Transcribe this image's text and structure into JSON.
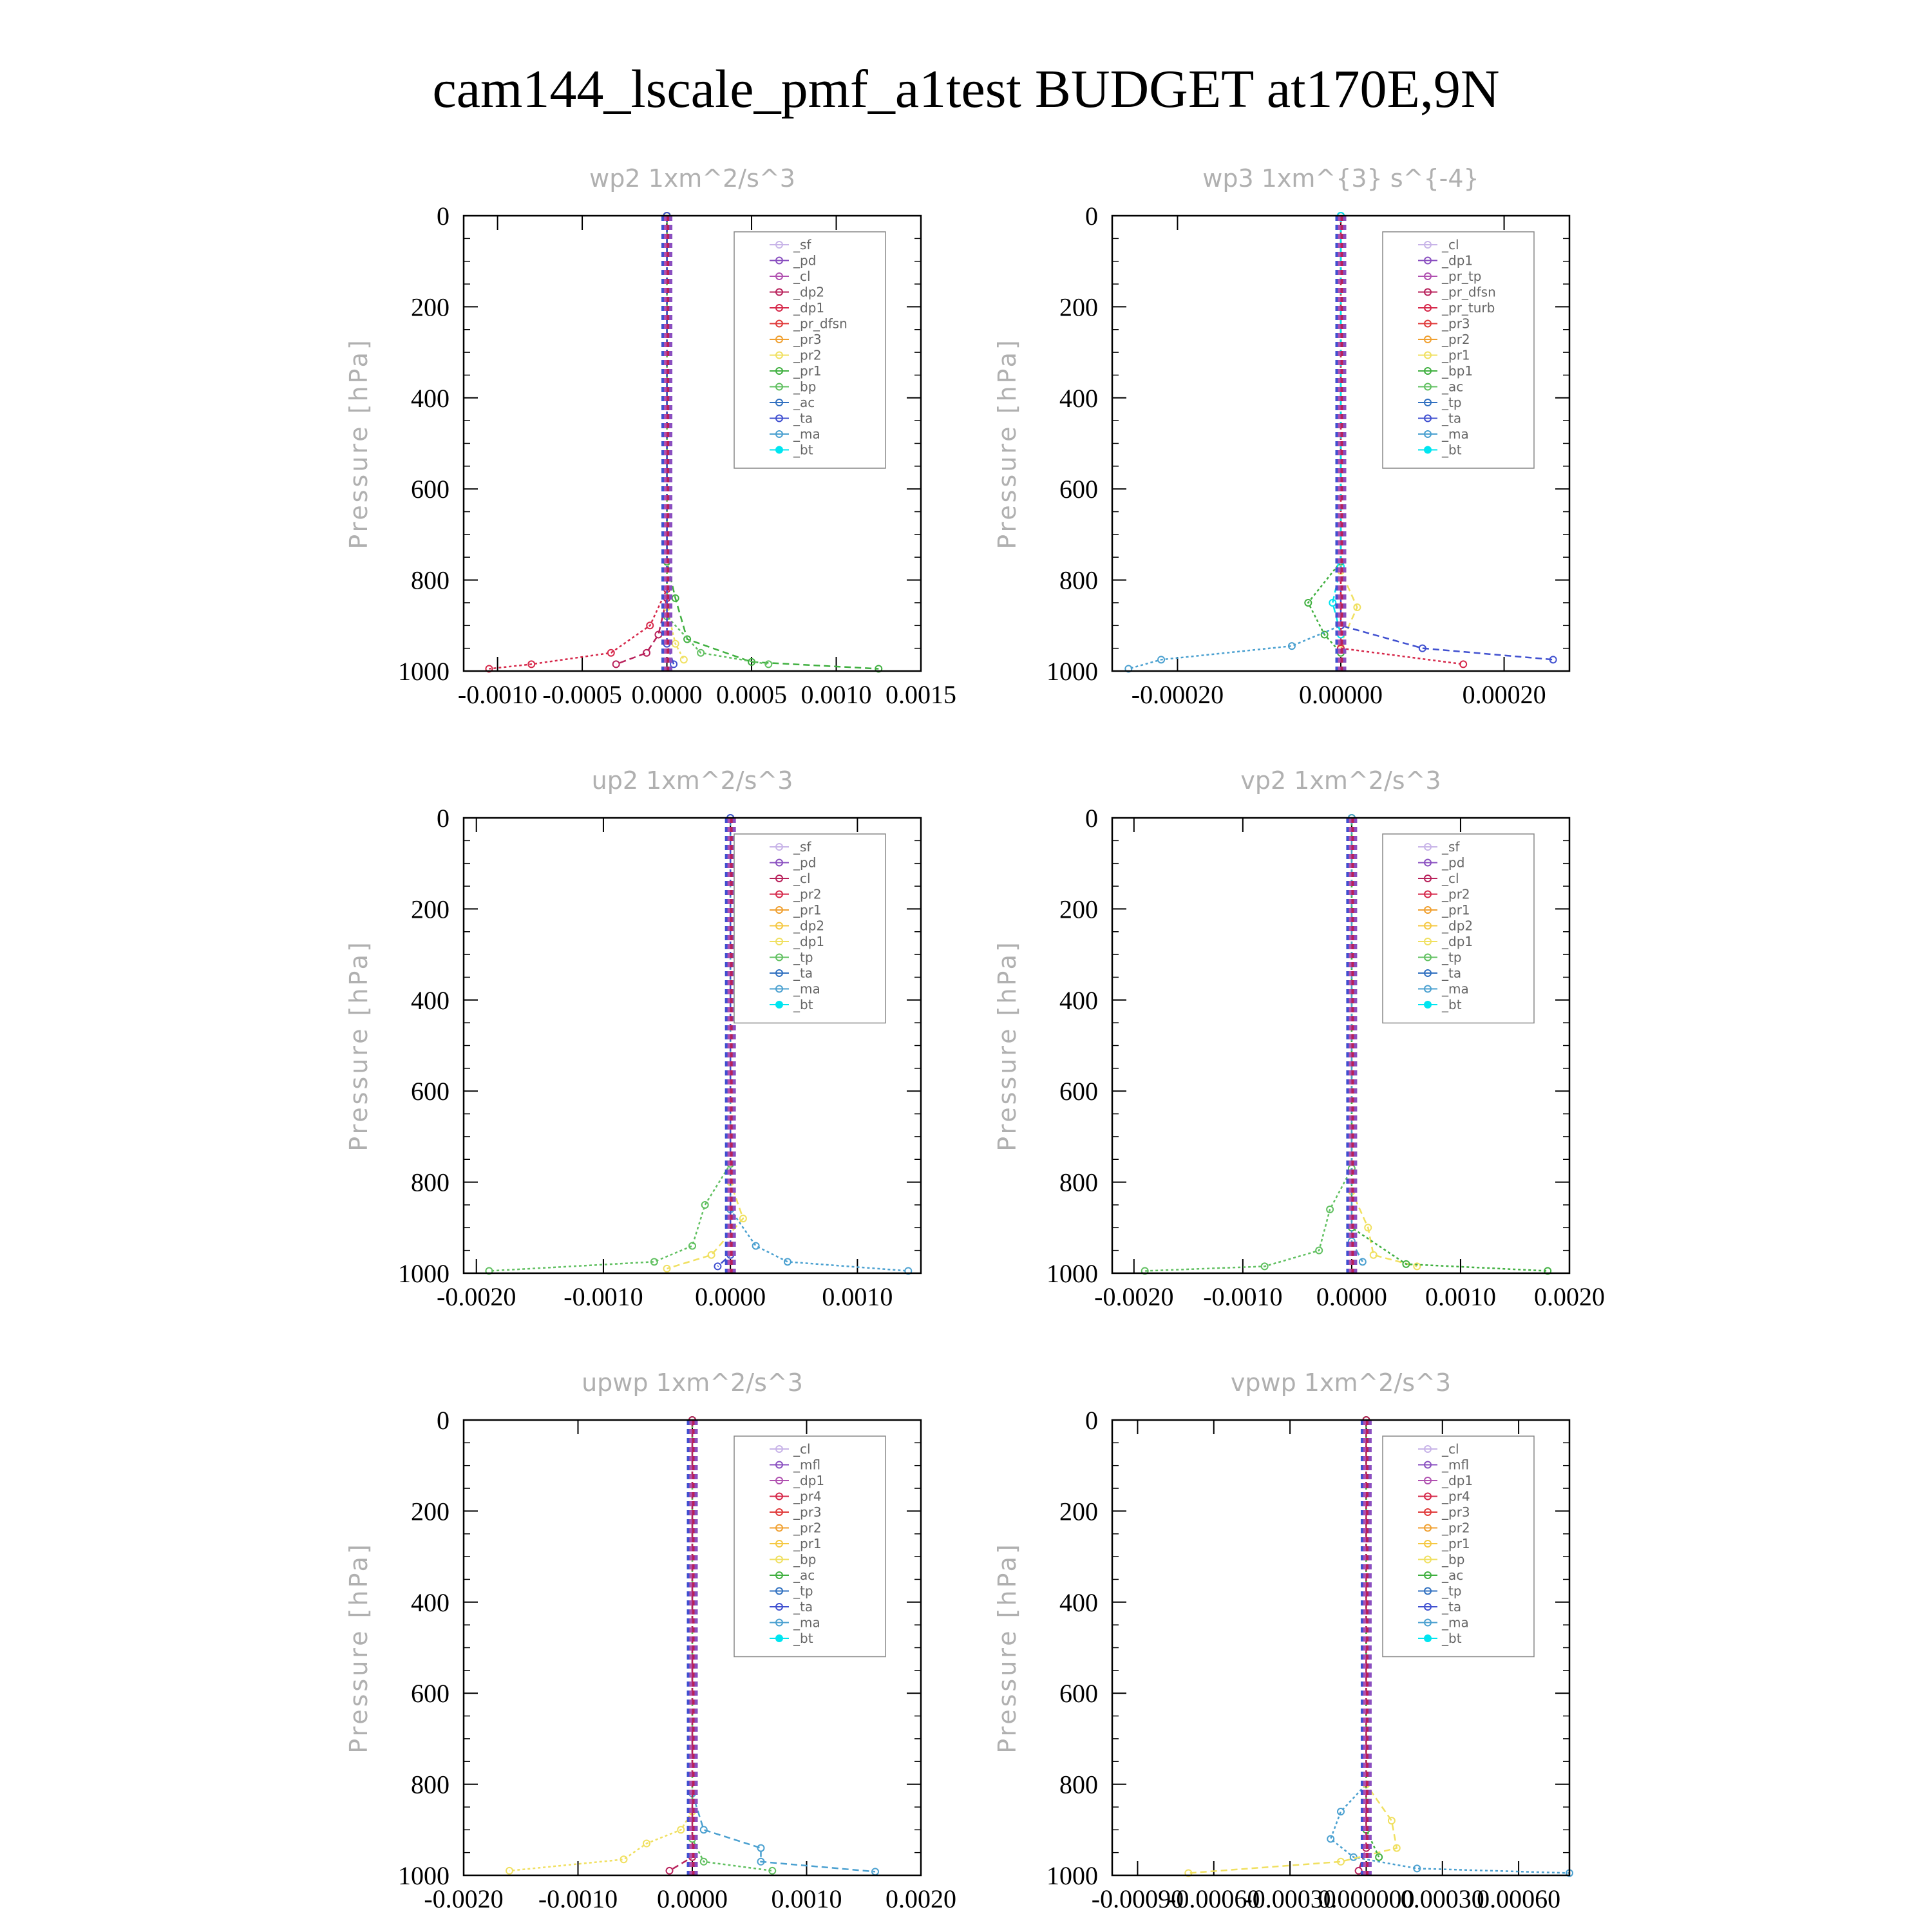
{
  "title": "cam144_lscale_pmf_a1test  BUDGET at170E,9N",
  "colors": {
    "frame": "#000000",
    "title_gray": "#b0b0b0",
    "legend_palette": [
      "#c8b4e8",
      "#8a4fc0",
      "#b050b0",
      "#b8205a",
      "#d6284a",
      "#e03a3a",
      "#f0a030",
      "#f5c842",
      "#f0e060",
      "#40b040",
      "#60c060",
      "#3070c0",
      "#4050d0",
      "#4aa0d0",
      "#00e5f0"
    ]
  },
  "chart_data": [
    {
      "type": "line",
      "title": "wp2   1xm^2/s^3",
      "ylabel": "Pressure [hPa]",
      "ylim": [
        0,
        1000
      ],
      "yticks": [
        "0",
        "200",
        "400",
        "600",
        "800",
        "1000"
      ],
      "xlim": [
        -0.0012,
        0.0015
      ],
      "xticks": [
        -0.001,
        -0.0005,
        0.0,
        0.0005,
        0.001,
        0.0015
      ],
      "xtick_labels": [
        "-0.0010",
        "-0.0005",
        "0.0000",
        "0.0005",
        "0.0010",
        "0.0015"
      ],
      "legend": [
        "_sf",
        "_pd",
        "_cl",
        "_dp2",
        "_dp1",
        "_pr_dfsn",
        "_pr3",
        "_pr2",
        "_pr1",
        "_bp",
        "_ac",
        "_ta",
        "_ma",
        "_bt"
      ],
      "series": [
        {
          "name": "_dp1",
          "color": "#d6284a",
          "points": [
            [
              0,
              0
            ],
            [
              0,
              820
            ],
            [
              -0.0001,
              900
            ],
            [
              -0.00033,
              960
            ],
            [
              -0.0008,
              985
            ],
            [
              -0.00105,
              995
            ]
          ]
        },
        {
          "name": "_dp2",
          "color": "#b8205a",
          "points": [
            [
              0,
              0
            ],
            [
              0,
              840
            ],
            [
              -5e-05,
              920
            ],
            [
              -0.00012,
              960
            ],
            [
              -0.0003,
              985
            ]
          ]
        },
        {
          "name": "_pr1",
          "color": "#f0e060",
          "points": [
            [
              0,
              0
            ],
            [
              0,
              860
            ],
            [
              5e-05,
              940
            ],
            [
              0.0001,
              975
            ]
          ]
        },
        {
          "name": "_bp",
          "color": "#40b040",
          "points": [
            [
              0,
              0
            ],
            [
              0,
              760
            ],
            [
              5e-05,
              840
            ],
            [
              0.00012,
              930
            ],
            [
              0.0005,
              980
            ],
            [
              0.00125,
              995
            ]
          ]
        },
        {
          "name": "_ac",
          "color": "#60c060",
          "points": [
            [
              0,
              0
            ],
            [
              0,
              880
            ],
            [
              0.0002,
              960
            ],
            [
              0.0006,
              985
            ]
          ]
        },
        {
          "name": "_ta",
          "color": "#4050d0",
          "points": [
            [
              0,
              0
            ],
            [
              0,
              940
            ],
            [
              4e-05,
              985
            ]
          ]
        }
      ]
    },
    {
      "type": "line",
      "title": "wp3   1xm^{3} s^{-4}",
      "ylabel": "Pressure [hPa]",
      "ylim": [
        0,
        1000
      ],
      "yticks": [
        "0",
        "200",
        "400",
        "600",
        "800",
        "1000"
      ],
      "xlim": [
        -0.00028,
        0.00028
      ],
      "xticks": [
        -0.0002,
        0.0,
        0.0002
      ],
      "xtick_labels": [
        "-0.00020",
        "0.00000",
        "0.00020"
      ],
      "legend": [
        "_cl",
        "_dp1",
        "_pr_tp",
        "_pr_dfsn",
        "_pr_turb",
        "_pr3",
        "_pr2",
        "_pr1",
        "_bp1",
        "_ac",
        "_tp",
        "_ta",
        "_ma",
        "_bt"
      ],
      "series": [
        {
          "name": "_bp1",
          "color": "#40b040",
          "points": [
            [
              0,
              0
            ],
            [
              0,
              760
            ],
            [
              -4e-05,
              850
            ],
            [
              -2e-05,
              920
            ],
            [
              0,
              960
            ]
          ]
        },
        {
          "name": "_pr1",
          "color": "#f0e060",
          "points": [
            [
              0,
              0
            ],
            [
              0,
              780
            ],
            [
              2e-05,
              860
            ],
            [
              0,
              940
            ]
          ]
        },
        {
          "name": "_tp",
          "color": "#4aa0d0",
          "points": [
            [
              0,
              0
            ],
            [
              0,
              900
            ],
            [
              -6e-05,
              945
            ],
            [
              -0.00022,
              975
            ],
            [
              -0.00026,
              995
            ]
          ]
        },
        {
          "name": "_ta",
          "color": "#4050d0",
          "points": [
            [
              0,
              0
            ],
            [
              0,
              900
            ],
            [
              0.0001,
              950
            ],
            [
              0.00026,
              975
            ]
          ]
        },
        {
          "name": "_pr_turb",
          "color": "#d6284a",
          "points": [
            [
              0,
              0
            ],
            [
              0,
              950
            ],
            [
              0.00015,
              985
            ]
          ]
        },
        {
          "name": "_bt",
          "color": "#00e5f0",
          "points": [
            [
              0,
              0
            ],
            [
              0,
              770
            ],
            [
              -1e-05,
              850
            ],
            [
              0,
              920
            ]
          ]
        }
      ]
    },
    {
      "type": "line",
      "title": "up2   1xm^2/s^3",
      "ylabel": "Pressure [hPa]",
      "ylim": [
        0,
        1000
      ],
      "yticks": [
        "0",
        "200",
        "400",
        "600",
        "800",
        "1000"
      ],
      "xlim": [
        -0.0021,
        0.0015
      ],
      "xticks": [
        -0.002,
        -0.001,
        0.0,
        0.001
      ],
      "xtick_labels": [
        "-0.0020",
        "-0.0010",
        "0.0000",
        "0.0010"
      ],
      "legend": [
        "_sf",
        "_pd",
        "_cl",
        "_pr2",
        "_pr1",
        "_dp2",
        "_dp1",
        "_tp",
        "_ta",
        "_ma",
        "_bt"
      ],
      "series": [
        {
          "name": "_dp1",
          "color": "#60c060",
          "points": [
            [
              0,
              0
            ],
            [
              0,
              760
            ],
            [
              -0.0002,
              850
            ],
            [
              -0.0003,
              940
            ],
            [
              -0.0006,
              975
            ],
            [
              -0.0019,
              995
            ]
          ]
        },
        {
          "name": "_pr1",
          "color": "#f0e060",
          "points": [
            [
              0,
              0
            ],
            [
              0,
              800
            ],
            [
              0.0001,
              880
            ],
            [
              -0.00015,
              960
            ],
            [
              -0.0005,
              990
            ]
          ]
        },
        {
          "name": "_tp",
          "color": "#4aa0d0",
          "points": [
            [
              0,
              0
            ],
            [
              0,
              860
            ],
            [
              0.0002,
              940
            ],
            [
              0.00045,
              975
            ],
            [
              0.0014,
              995
            ]
          ]
        },
        {
          "name": "_ta",
          "color": "#4050d0",
          "points": [
            [
              0,
              0
            ],
            [
              0,
              960
            ],
            [
              -0.0001,
              985
            ]
          ]
        }
      ]
    },
    {
      "type": "line",
      "title": "vp2   1xm^2/s^3",
      "ylabel": "Pressure [hPa]",
      "ylim": [
        0,
        1000
      ],
      "yticks": [
        "0",
        "200",
        "400",
        "600",
        "800",
        "1000"
      ],
      "xlim": [
        -0.0022,
        0.002
      ],
      "xticks": [
        -0.002,
        -0.001,
        0.0,
        0.001,
        0.002
      ],
      "xtick_labels": [
        "-0.0020",
        "-0.0010",
        "0.0000",
        "0.0010",
        "0.0020"
      ],
      "legend": [
        "_sf",
        "_pd",
        "_cl",
        "_pr2",
        "_pr1",
        "_dp2",
        "_dp1",
        "_tp",
        "_ta",
        "_ma",
        "_bt"
      ],
      "series": [
        {
          "name": "_dp1",
          "color": "#60c060",
          "points": [
            [
              0,
              0
            ],
            [
              0,
              770
            ],
            [
              -0.0002,
              860
            ],
            [
              -0.0003,
              950
            ],
            [
              -0.0008,
              985
            ],
            [
              -0.0019,
              995
            ]
          ]
        },
        {
          "name": "_pr1",
          "color": "#f0e060",
          "points": [
            [
              0,
              0
            ],
            [
              0,
              820
            ],
            [
              0.00015,
              900
            ],
            [
              0.0002,
              960
            ],
            [
              0.0006,
              985
            ]
          ]
        },
        {
          "name": "_dp2",
          "color": "#40b040",
          "points": [
            [
              0,
              0
            ],
            [
              0,
              900
            ],
            [
              0.0005,
              980
            ],
            [
              0.0018,
              995
            ]
          ]
        },
        {
          "name": "_tp",
          "color": "#4aa0d0",
          "points": [
            [
              0,
              0
            ],
            [
              0,
              930
            ],
            [
              0.0001,
              975
            ]
          ]
        }
      ]
    },
    {
      "type": "line",
      "title": "upwp   1xm^2/s^3",
      "ylabel": "Pressure [hPa]",
      "ylim": [
        0,
        1000
      ],
      "yticks": [
        "0",
        "200",
        "400",
        "600",
        "800",
        "1000"
      ],
      "xlim": [
        -0.002,
        0.002
      ],
      "xticks": [
        -0.002,
        -0.001,
        0.0,
        0.001,
        0.002
      ],
      "xtick_labels": [
        "-0.0020",
        "-0.0010",
        "0.0000",
        "0.0010",
        "0.0020"
      ],
      "legend": [
        "_cl",
        "_mfl",
        "_dp1",
        "_pr4",
        "_pr3",
        "_pr2",
        "_pr1",
        "_bp",
        "_ac",
        "_tp",
        "_ta",
        "_ma",
        "_bt"
      ],
      "series": [
        {
          "name": "_pr1",
          "color": "#f0e060",
          "points": [
            [
              0,
              0
            ],
            [
              0,
              860
            ],
            [
              -0.0001,
              900
            ],
            [
              -0.0004,
              930
            ],
            [
              -0.0006,
              965
            ],
            [
              -0.0016,
              990
            ]
          ]
        },
        {
          "name": "_tp",
          "color": "#4aa0d0",
          "points": [
            [
              0,
              0
            ],
            [
              0,
              820
            ],
            [
              0.0001,
              900
            ],
            [
              0.0006,
              940
            ],
            [
              0.0006,
              970
            ],
            [
              0.0016,
              992
            ]
          ]
        },
        {
          "name": "_ac",
          "color": "#60c060",
          "points": [
            [
              0,
              0
            ],
            [
              0,
              920
            ],
            [
              0.0001,
              970
            ],
            [
              0.0007,
              990
            ]
          ]
        },
        {
          "name": "_dp1",
          "color": "#b8205a",
          "points": [
            [
              0,
              0
            ],
            [
              0,
              960
            ],
            [
              -0.0002,
              990
            ]
          ]
        }
      ]
    },
    {
      "type": "line",
      "title": "vpwp   1xm^2/s^3",
      "ylabel": "Pressure [hPa]",
      "ylim": [
        0,
        1000
      ],
      "yticks": [
        "0",
        "200",
        "400",
        "600",
        "800",
        "1000"
      ],
      "xlim": [
        -0.001,
        0.0008
      ],
      "xticks": [
        -0.0009,
        -0.0006,
        -0.0003,
        0.0,
        0.0003,
        0.0006
      ],
      "xtick_labels": [
        "-0.00090",
        "-0.00060",
        "-0.00030",
        "0.000000",
        "0.00030",
        "0.00060"
      ],
      "legend": [
        "_cl",
        "_mfl",
        "_dp1",
        "_pr4",
        "_pr3",
        "_pr2",
        "_pr1",
        "_bp",
        "_ac",
        "_tp",
        "_ta",
        "_ma",
        "_bt"
      ],
      "series": [
        {
          "name": "_tp",
          "color": "#4aa0d0",
          "points": [
            [
              0,
              0
            ],
            [
              0,
              800
            ],
            [
              -0.0001,
              860
            ],
            [
              -0.00014,
              920
            ],
            [
              -5e-05,
              960
            ],
            [
              0.0002,
              985
            ],
            [
              0.0008,
              995
            ]
          ]
        },
        {
          "name": "_pr1",
          "color": "#f0e060",
          "points": [
            [
              0,
              0
            ],
            [
              0,
              800
            ],
            [
              0.0001,
              880
            ],
            [
              0.00012,
              940
            ],
            [
              -0.0001,
              970
            ],
            [
              -0.0007,
              995
            ]
          ]
        },
        {
          "name": "_bp",
          "color": "#40b040",
          "points": [
            [
              0,
              0
            ],
            [
              0,
              900
            ],
            [
              5e-05,
              960
            ]
          ]
        },
        {
          "name": "_dp1",
          "color": "#b8205a",
          "points": [
            [
              0,
              0
            ],
            [
              0,
              940
            ],
            [
              -3e-05,
              990
            ]
          ]
        }
      ]
    }
  ]
}
